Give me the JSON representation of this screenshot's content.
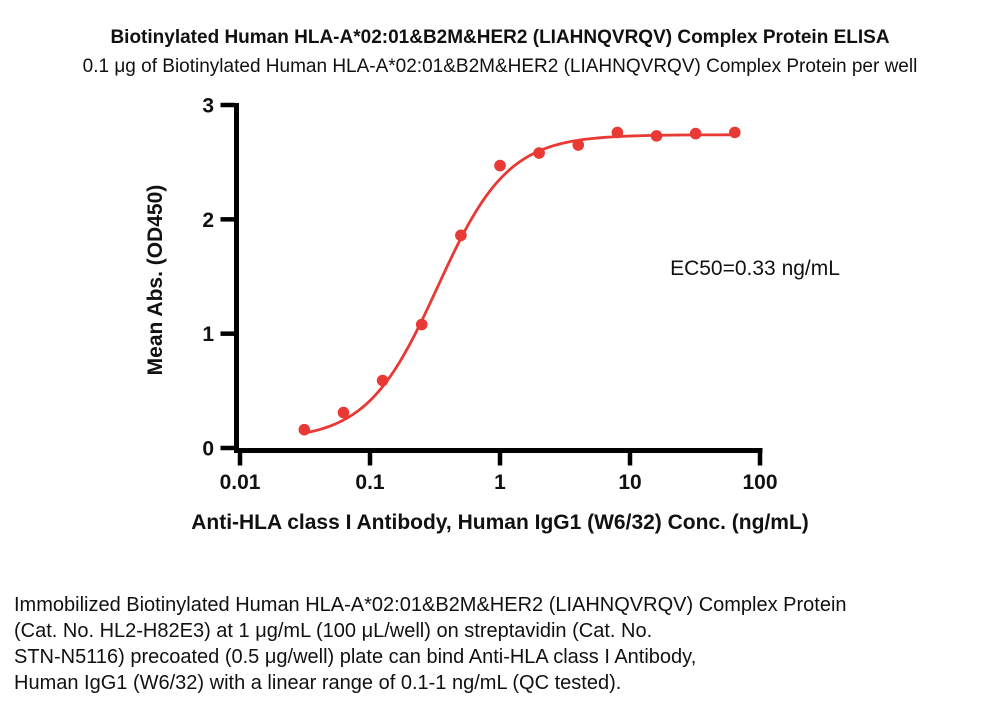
{
  "header": {
    "title": "Biotinylated Human HLA-A*02:01&B2M&HER2 (LIAHNQVRQV) Complex Protein ELISA",
    "subtitle": "0.1 μg of Biotinylated Human HLA-A*02:01&B2M&HER2 (LIAHNQVRQV) Complex Protein per well"
  },
  "chart_data": {
    "type": "scatter",
    "title": "Biotinylated Human HLA-A*02:01&B2M&HER2 (LIAHNQVRQV) Complex Protein ELISA",
    "xlabel": "Anti-HLA class I Antibody, Human IgG1 (W6/32) Conc. (ng/mL)",
    "ylabel": "Mean Abs. (OD450)",
    "x_scale": "log",
    "xlim": [
      0.01,
      100
    ],
    "ylim": [
      0,
      3
    ],
    "x_ticks": [
      "0.01",
      "0.1",
      "1",
      "10",
      "100"
    ],
    "y_ticks": [
      "0",
      "1",
      "2",
      "3"
    ],
    "grid": false,
    "legend": "none",
    "annotation": "EC50=0.33 ng/mL",
    "ec50_ng_ml": 0.33,
    "series": [
      {
        "color": "#e83935",
        "x": [
          0.03125,
          0.0625,
          0.125,
          0.25,
          0.5,
          1,
          2,
          4,
          8,
          16,
          32,
          64
        ],
        "y": [
          0.16,
          0.31,
          0.59,
          1.08,
          1.86,
          2.47,
          2.58,
          2.65,
          2.76,
          2.73,
          2.75,
          2.76
        ]
      }
    ],
    "curve_fit": {
      "model": "4PL",
      "bottom": 0.07,
      "top": 2.74,
      "ec50": 0.33,
      "hill": 1.6
    }
  },
  "description": {
    "lines": [
      "Immobilized Biotinylated Human HLA-A*02:01&B2M&HER2 (LIAHNQVRQV) Complex Protein",
      "(Cat. No. HL2-H82E3) at 1 μg/mL (100 μL/well) on streptavidin (Cat. No.",
      "STN-N5116) precoated (0.5 μg/well) plate can bind Anti-HLA class I Antibody,",
      "Human IgG1 (W6/32) with a linear range of 0.1-1 ng/mL (QC tested)."
    ]
  },
  "colors": {
    "accent": "#e83935",
    "axis": "#000000",
    "text": "#111111",
    "background": "#ffffff"
  }
}
